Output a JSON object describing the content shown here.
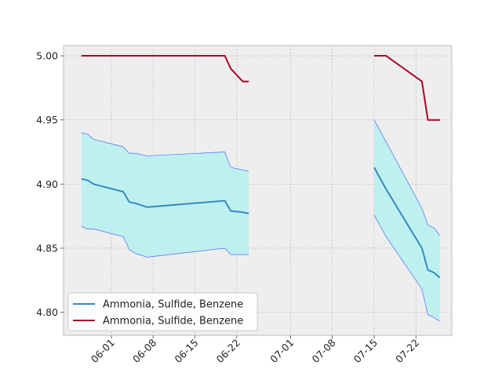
{
  "chart_data": {
    "type": "line",
    "title": "",
    "xlabel": "",
    "ylabel": "",
    "x_axis_type": "date",
    "xlim": [
      "2024-05-24",
      "2024-07-28"
    ],
    "ylim": [
      4.782,
      5.008
    ],
    "grid": true,
    "legend_placement": "lower-left",
    "x_ticks": [
      {
        "date": "2024-06-01",
        "label": "06-01"
      },
      {
        "date": "2024-06-08",
        "label": "06-08"
      },
      {
        "date": "2024-06-15",
        "label": "06-15"
      },
      {
        "date": "2024-06-22",
        "label": "06-22"
      },
      {
        "date": "2024-07-01",
        "label": "07-01"
      },
      {
        "date": "2024-07-08",
        "label": "07-08"
      },
      {
        "date": "2024-07-15",
        "label": "07-15"
      },
      {
        "date": "2024-07-22",
        "label": "07-22"
      }
    ],
    "y_ticks": [
      {
        "value": 4.8,
        "label": "4.80"
      },
      {
        "value": 4.85,
        "label": "4.85"
      },
      {
        "value": 4.9,
        "label": "4.90"
      },
      {
        "value": 4.95,
        "label": "4.95"
      },
      {
        "value": 5.0,
        "label": "5.00"
      }
    ],
    "series": [
      {
        "name": "Ammonia, Sulfide, Benzene",
        "color": "#348abd",
        "band_fill": "#bff0f0",
        "band_edge": "#4f6bf5",
        "segments": [
          [
            {
              "x": "2024-05-27",
              "y": 4.904,
              "lo": 4.867,
              "hi": 4.94
            },
            {
              "x": "2024-05-28",
              "y": 4.903,
              "lo": 4.865,
              "hi": 4.939
            },
            {
              "x": "2024-05-29",
              "y": 4.9,
              "lo": 4.865,
              "hi": 4.935
            },
            {
              "x": "2024-06-03",
              "y": 4.894,
              "lo": 4.859,
              "hi": 4.929
            },
            {
              "x": "2024-06-04",
              "y": 4.886,
              "lo": 4.849,
              "hi": 4.924
            },
            {
              "x": "2024-06-05",
              "y": 4.885,
              "lo": 4.846,
              "hi": 4.924
            },
            {
              "x": "2024-06-07",
              "y": 4.882,
              "lo": 4.843,
              "hi": 4.922
            },
            {
              "x": "2024-06-20",
              "y": 4.887,
              "lo": 4.85,
              "hi": 4.925
            },
            {
              "x": "2024-06-21",
              "y": 4.879,
              "lo": 4.845,
              "hi": 4.913
            },
            {
              "x": "2024-06-23",
              "y": 4.878,
              "lo": 4.845,
              "hi": 4.911
            },
            {
              "x": "2024-06-24",
              "y": 4.877,
              "lo": 4.845,
              "hi": 4.91
            }
          ],
          [
            {
              "x": "2024-07-15",
              "y": 4.913,
              "lo": 4.876,
              "hi": 4.95
            },
            {
              "x": "2024-07-17",
              "y": 4.896,
              "lo": 4.859,
              "hi": 4.933
            },
            {
              "x": "2024-07-23",
              "y": 4.85,
              "lo": 4.818,
              "hi": 4.881
            },
            {
              "x": "2024-07-24",
              "y": 4.833,
              "lo": 4.798,
              "hi": 4.868
            },
            {
              "x": "2024-07-25",
              "y": 4.831,
              "lo": 4.796,
              "hi": 4.866
            },
            {
              "x": "2024-07-26",
              "y": 4.827,
              "lo": 4.793,
              "hi": 4.86
            }
          ]
        ]
      },
      {
        "name": "Ammonia, Sulfide, Benzene",
        "color": "#a60628",
        "segments": [
          [
            {
              "x": "2024-05-27",
              "y": 5.0
            },
            {
              "x": "2024-06-20",
              "y": 5.0
            },
            {
              "x": "2024-06-21",
              "y": 4.99
            },
            {
              "x": "2024-06-23",
              "y": 4.98
            },
            {
              "x": "2024-06-24",
              "y": 4.98
            }
          ],
          [
            {
              "x": "2024-07-15",
              "y": 5.0
            },
            {
              "x": "2024-07-17",
              "y": 5.0
            },
            {
              "x": "2024-07-23",
              "y": 4.98
            },
            {
              "x": "2024-07-24",
              "y": 4.95
            },
            {
              "x": "2024-07-26",
              "y": 4.95
            }
          ]
        ]
      }
    ]
  }
}
